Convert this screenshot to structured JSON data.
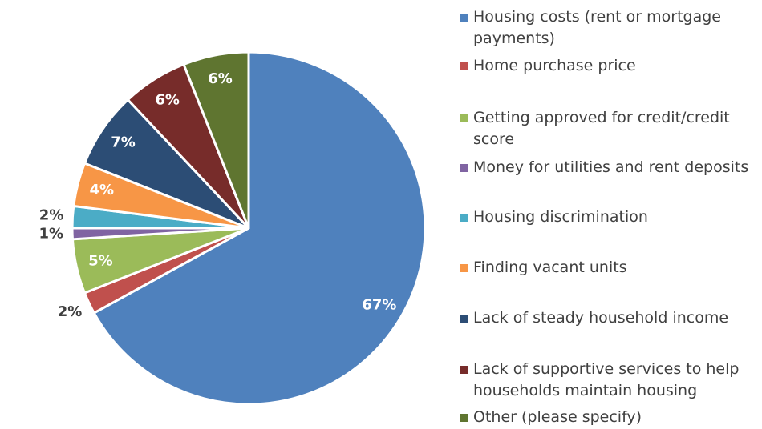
{
  "chart_data": {
    "type": "pie",
    "categories": [
      "Housing costs (rent or mortgage payments)",
      "Home purchase price",
      "Getting approved for credit/credit score",
      "Money for utilities and rent deposits",
      "Housing discrimination",
      "Finding vacant units",
      "Lack of steady household income",
      "Lack of supportive services to help households maintain housing",
      "Other (please specify)"
    ],
    "values": [
      67,
      2,
      5,
      1,
      2,
      4,
      7,
      6,
      6
    ],
    "value_labels": [
      "67%",
      "2%",
      "5%",
      "1%",
      "2%",
      "4%",
      "7%",
      "6%",
      "6%"
    ],
    "colors": [
      "#4f81bd",
      "#c0504d",
      "#9bbb59",
      "#8064a2",
      "#4bacc6",
      "#f79646",
      "#2c4d75",
      "#772c2a",
      "#5f7530"
    ],
    "legend": "right"
  }
}
